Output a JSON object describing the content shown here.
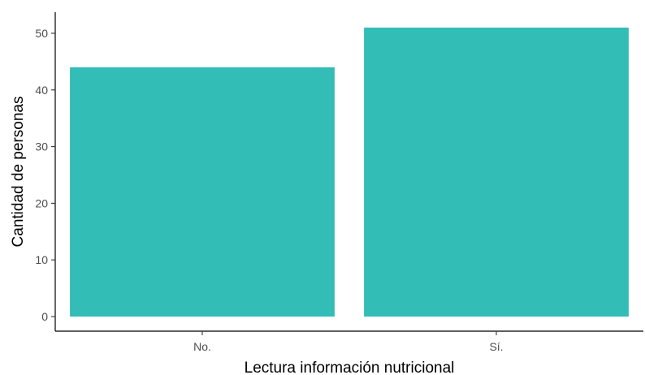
{
  "chart_data": {
    "type": "bar",
    "title": "",
    "xlabel": "Lectura información nutricional",
    "ylabel": "Cantidad de personas",
    "categories": [
      "No.",
      "Sí."
    ],
    "values": [
      44,
      51
    ],
    "ylim": [
      0,
      53.5
    ],
    "yticks": [
      0,
      10,
      20,
      30,
      40,
      50
    ],
    "ytick_labels": [
      "0",
      "10",
      "20",
      "30",
      "40",
      "50"
    ],
    "grid": false,
    "legend": "none",
    "bar_color": "#32BDB7"
  }
}
